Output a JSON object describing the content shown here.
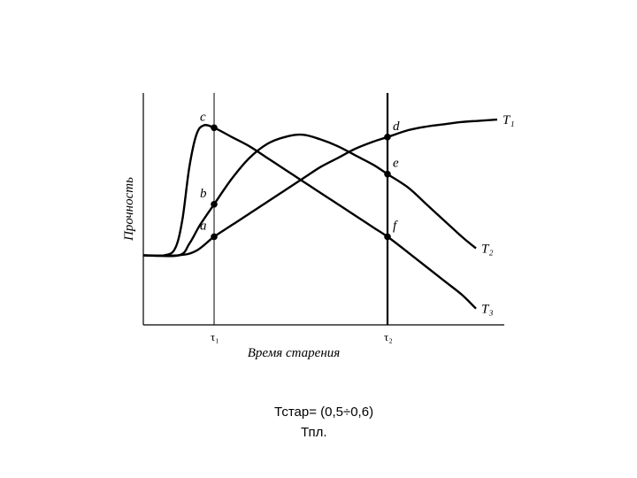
{
  "chart_data": {
    "type": "line",
    "xlabel": "Время старения",
    "ylabel": "Прочность",
    "grid": false,
    "legend": "curve-end labels at right",
    "xlim": [
      0,
      10
    ],
    "ylim": [
      0,
      10
    ],
    "vertical_markers": [
      {
        "label": "τ₁",
        "x": 2.0
      },
      {
        "label": "τ₂",
        "x": 6.9
      }
    ],
    "series": [
      {
        "name": "T₁",
        "x": [
          0,
          1.0,
          1.5,
          2.0,
          2.5,
          3.0,
          3.5,
          4.0,
          4.5,
          5.0,
          5.5,
          6.0,
          6.5,
          6.9,
          7.5,
          8.0,
          8.5,
          9.0,
          9.5,
          10.0
        ],
        "y": [
          3.0,
          3.0,
          3.2,
          3.8,
          4.3,
          4.8,
          5.3,
          5.8,
          6.3,
          6.8,
          7.2,
          7.6,
          7.9,
          8.1,
          8.4,
          8.55,
          8.65,
          8.75,
          8.8,
          8.85
        ]
      },
      {
        "name": "T₂",
        "x": [
          0,
          1.0,
          1.3,
          1.6,
          2.0,
          2.5,
          3.0,
          3.5,
          4.0,
          4.5,
          5.0,
          5.5,
          6.0,
          6.5,
          6.9,
          7.5,
          8.0,
          8.5,
          9.0,
          9.4
        ],
        "y": [
          3.0,
          3.0,
          3.5,
          4.3,
          5.2,
          6.3,
          7.2,
          7.8,
          8.1,
          8.2,
          8.0,
          7.7,
          7.3,
          6.9,
          6.5,
          5.9,
          5.2,
          4.5,
          3.8,
          3.3
        ]
      },
      {
        "name": "T₃",
        "x": [
          0,
          0.6,
          0.9,
          1.1,
          1.3,
          1.5,
          1.7,
          2.0,
          2.5,
          3.0,
          3.5,
          4.0,
          4.5,
          5.0,
          5.5,
          6.0,
          6.5,
          6.9,
          7.5,
          8.0,
          8.5,
          9.0,
          9.4
        ],
        "y": [
          3.0,
          3.0,
          3.3,
          4.5,
          6.8,
          8.2,
          8.6,
          8.5,
          8.1,
          7.7,
          7.2,
          6.7,
          6.2,
          5.7,
          5.2,
          4.7,
          4.2,
          3.8,
          3.1,
          2.5,
          1.9,
          1.3,
          0.7
        ]
      }
    ],
    "points": [
      {
        "label": "c",
        "x": 2.0,
        "y": 8.5
      },
      {
        "label": "b",
        "x": 2.0,
        "y": 5.2
      },
      {
        "label": "a",
        "x": 2.0,
        "y": 3.8
      },
      {
        "label": "d",
        "x": 6.9,
        "y": 8.1
      },
      {
        "label": "e",
        "x": 6.9,
        "y": 6.5
      },
      {
        "label": "f",
        "x": 6.9,
        "y": 3.8
      }
    ]
  },
  "caption": {
    "line1": "Тстар= (0,5÷0,6)",
    "line2": "Тпл."
  }
}
